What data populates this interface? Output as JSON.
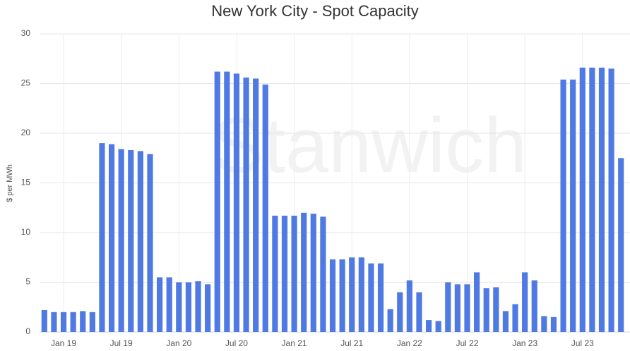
{
  "chart_data": {
    "type": "bar",
    "title": "New York City - Spot Capacity",
    "y_label": "$ per MWh",
    "watermark": "Stanwich",
    "categories": [
      null,
      null,
      "Jan 19",
      null,
      null,
      null,
      null,
      null,
      "Jul 19",
      null,
      null,
      null,
      null,
      null,
      "Jan 20",
      null,
      null,
      null,
      null,
      null,
      "Jul 20",
      null,
      null,
      null,
      null,
      null,
      "Jan 21",
      null,
      null,
      null,
      null,
      null,
      "Jul 21",
      null,
      null,
      null,
      null,
      null,
      "Jan 22",
      null,
      null,
      null,
      null,
      null,
      "Jul 22",
      null,
      null,
      null,
      null,
      null,
      "Jan 23",
      null,
      null,
      null,
      null,
      null,
      "Jul 23",
      null,
      null,
      null,
      null
    ],
    "values": [
      2.2,
      2.0,
      2.0,
      2.0,
      2.1,
      2.0,
      19.0,
      18.9,
      18.4,
      18.3,
      18.2,
      17.9,
      5.5,
      5.5,
      5.0,
      5.0,
      5.1,
      4.8,
      26.2,
      26.2,
      26.0,
      25.6,
      25.5,
      24.9,
      11.7,
      11.7,
      11.7,
      12.0,
      11.9,
      11.6,
      7.3,
      7.3,
      7.5,
      7.5,
      6.9,
      6.9,
      2.3,
      4.0,
      5.2,
      4.0,
      1.2,
      1.1,
      5.0,
      4.8,
      4.8,
      6.0,
      4.4,
      4.5,
      2.1,
      2.8,
      6.0,
      5.2,
      1.6,
      1.5,
      25.4,
      25.4,
      26.6,
      26.6,
      26.6,
      26.5,
      17.5
    ],
    "color": "#4f79e3",
    "ylim": [
      0,
      30
    ],
    "yticks": [
      0,
      5,
      10,
      15,
      20,
      25,
      30
    ],
    "grid": true
  }
}
